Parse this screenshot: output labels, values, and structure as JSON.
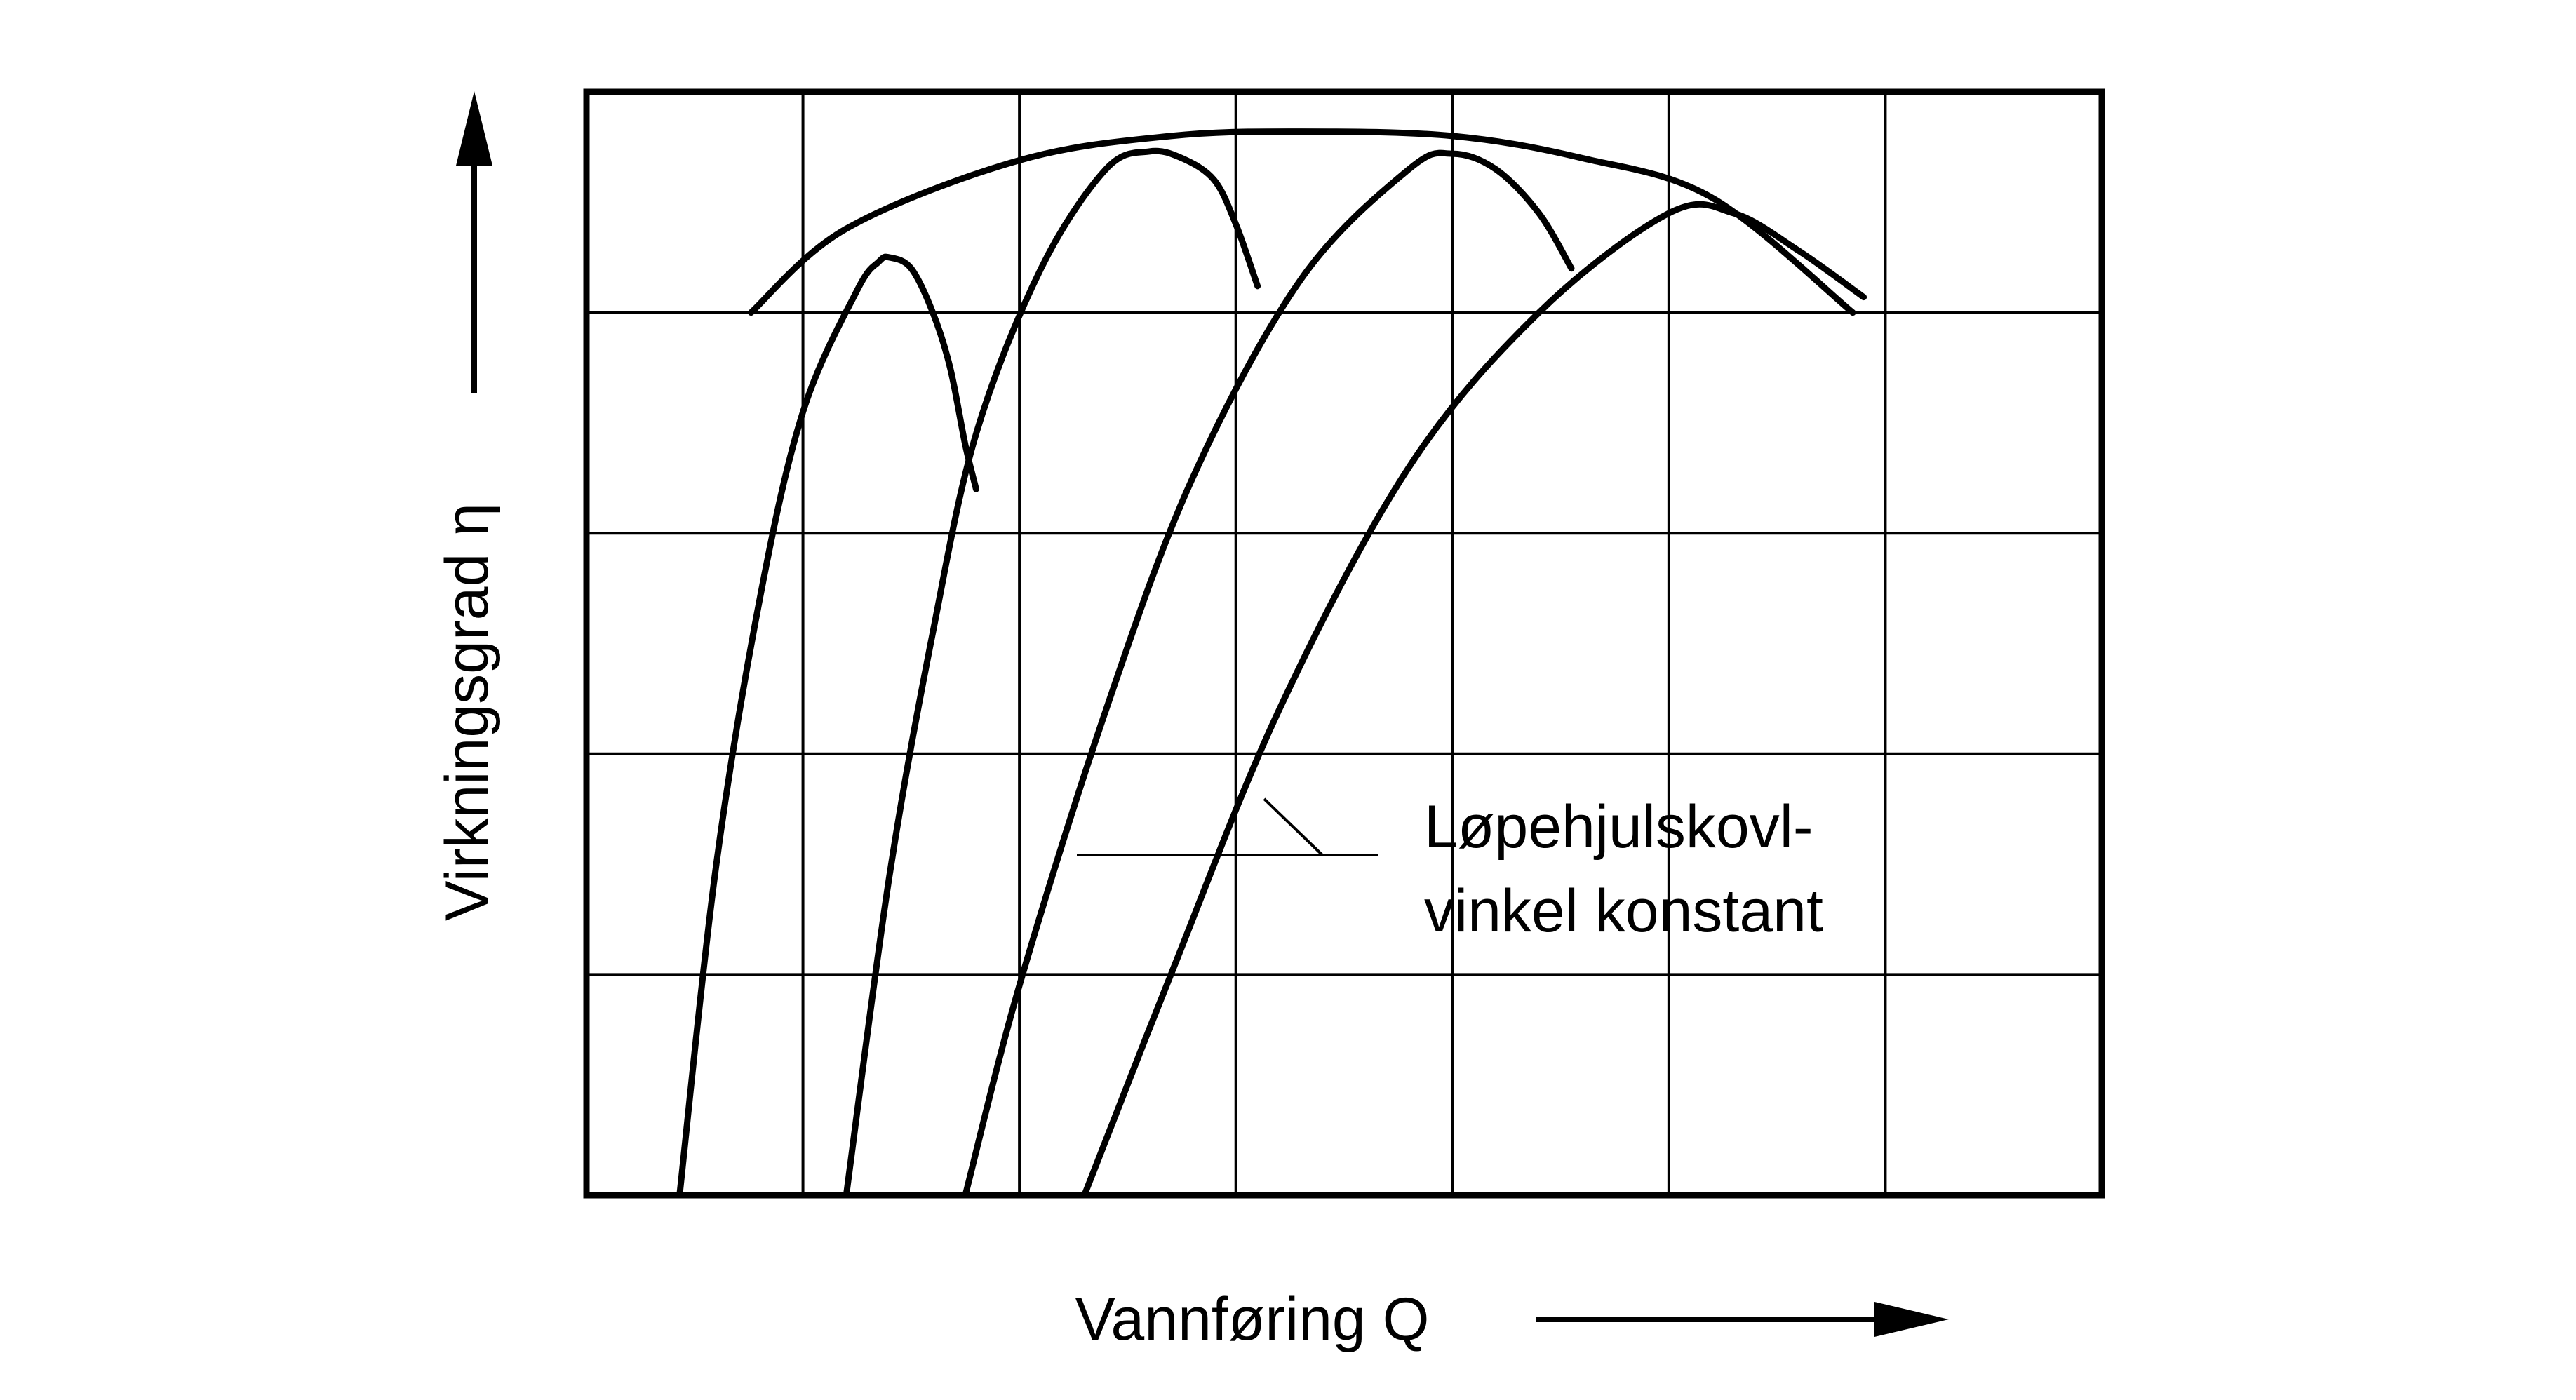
{
  "chart_data": {
    "type": "line",
    "title": "",
    "xlabel": "Vannføring Q",
    "ylabel": "Virkningsgrad η",
    "xlim": [
      0,
      7
    ],
    "ylim": [
      0,
      5
    ],
    "grid": true,
    "grid_x": [
      1,
      2,
      3,
      4,
      5,
      6
    ],
    "grid_y": [
      1,
      2,
      3,
      4
    ],
    "tick_labels": "none",
    "annotation": {
      "lines": [
        "Løpehjulskovl-",
        "vinkel konstant"
      ],
      "points_to_series": [
        2,
        3
      ]
    },
    "envelope": {
      "x": [
        0.76,
        1.2,
        2.0,
        2.7,
        3.3,
        4.0,
        4.6,
        5.2,
        5.85
      ],
      "y": [
        4.0,
        4.38,
        4.69,
        4.8,
        4.82,
        4.8,
        4.7,
        4.52,
        4.0
      ]
    },
    "series": [
      {
        "x": [
          0.43,
          0.6,
          0.8,
          1.0,
          1.25,
          1.35,
          1.4,
          1.5,
          1.6,
          1.68,
          1.75,
          1.8
        ],
        "y": [
          0.0,
          1.5,
          2.7,
          3.55,
          4.1,
          4.23,
          4.25,
          4.2,
          4.0,
          3.75,
          3.4,
          3.2
        ]
      },
      {
        "x": [
          1.2,
          1.4,
          1.6,
          1.8,
          2.1,
          2.4,
          2.6,
          2.75,
          2.9,
          3.0,
          3.1
        ],
        "y": [
          0.0,
          1.45,
          2.55,
          3.45,
          4.2,
          4.65,
          4.73,
          4.7,
          4.6,
          4.4,
          4.12
        ]
      },
      {
        "x": [
          1.75,
          2.0,
          2.4,
          2.8,
          3.3,
          3.8,
          4.0,
          4.2,
          4.4,
          4.55
        ],
        "y": [
          0.0,
          0.95,
          2.2,
          3.25,
          4.15,
          4.65,
          4.72,
          4.65,
          4.45,
          4.2
        ]
      },
      {
        "x": [
          2.3,
          2.7,
          3.2,
          3.8,
          4.4,
          5.0,
          5.3,
          5.6,
          5.9
        ],
        "y": [
          0.0,
          1.0,
          2.2,
          3.3,
          4.0,
          4.45,
          4.45,
          4.28,
          4.07
        ]
      }
    ]
  }
}
